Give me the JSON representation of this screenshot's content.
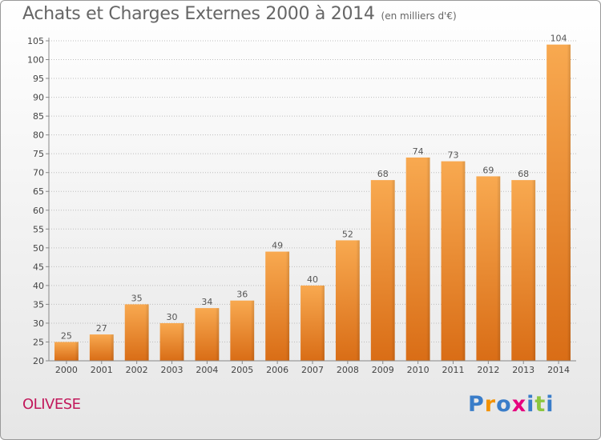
{
  "title": "Achats et Charges Externes 2000 à 2014",
  "subtitle": "(en milliers d'€)",
  "commune": "OLIVESE",
  "logo": {
    "text": "Proxiti",
    "letters": [
      "P",
      "r",
      "o",
      "x",
      "i",
      "t",
      "i"
    ],
    "colors": [
      "#3a7dc9",
      "#f39200",
      "#3a7dc9",
      "#e6007e",
      "#3a7dc9",
      "#8cc63f",
      "#3a7dc9"
    ]
  },
  "colors": {
    "bar_light": "#f8a950",
    "bar_dark": "#d96d16",
    "grid": "#bdbdbd",
    "commune": "#c2185b"
  },
  "chart_data": {
    "type": "bar",
    "categories": [
      "2000",
      "2001",
      "2002",
      "2003",
      "2004",
      "2005",
      "2006",
      "2007",
      "2008",
      "2009",
      "2010",
      "2011",
      "2012",
      "2013",
      "2014"
    ],
    "values": [
      25,
      27,
      35,
      30,
      34,
      36,
      49,
      40,
      52,
      68,
      74,
      73,
      69,
      68,
      104
    ],
    "title": "Achats et Charges Externes 2000 à 2014",
    "subtitle": "(en milliers d'€)",
    "xlabel": "",
    "ylabel": "",
    "ylim": [
      20,
      105
    ],
    "yticks": [
      20,
      25,
      30,
      35,
      40,
      45,
      50,
      55,
      60,
      65,
      70,
      75,
      80,
      85,
      90,
      95,
      100,
      105
    ],
    "grid": true,
    "legend": "none"
  }
}
